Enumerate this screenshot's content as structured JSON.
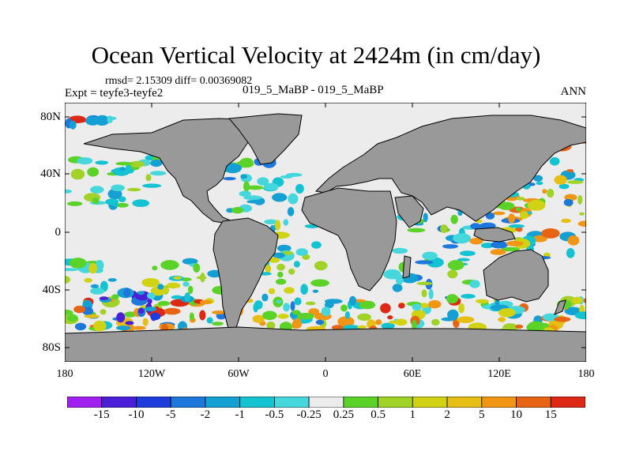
{
  "title": "Ocean Vertical Velocity at 2424m (in cm/day)",
  "stats": "rmsd= 2.15309 diff= 0.00369082",
  "experiment": "Expt = teyfe3-teyfe2",
  "case_label": "019_5_MaBP - 019_5_MaBP",
  "season": "ANN",
  "lat_labels": [
    "80N",
    "40N",
    "0",
    "40S",
    "80S"
  ],
  "lon_labels": [
    "180",
    "120W",
    "60W",
    "0",
    "60E",
    "120E",
    "180"
  ],
  "colorbar": {
    "labels": [
      "-15",
      "-10",
      "-5",
      "-2",
      "-1",
      "-0.5",
      "-0.25",
      "0.25",
      "0.5",
      "1",
      "2",
      "5",
      "10",
      "15"
    ],
    "colors": [
      "#a020f0",
      "#4b1ed8",
      "#1e3cdc",
      "#1e78dc",
      "#14a0d2",
      "#14c3d2",
      "#46d7dc",
      "#ececec",
      "#5ad228",
      "#a0d228",
      "#d2d214",
      "#e6be14",
      "#f09614",
      "#e66414",
      "#dc2814"
    ]
  },
  "colors": {
    "land": "#999999",
    "no_change": "#ececec",
    "frame": "#000000"
  }
}
